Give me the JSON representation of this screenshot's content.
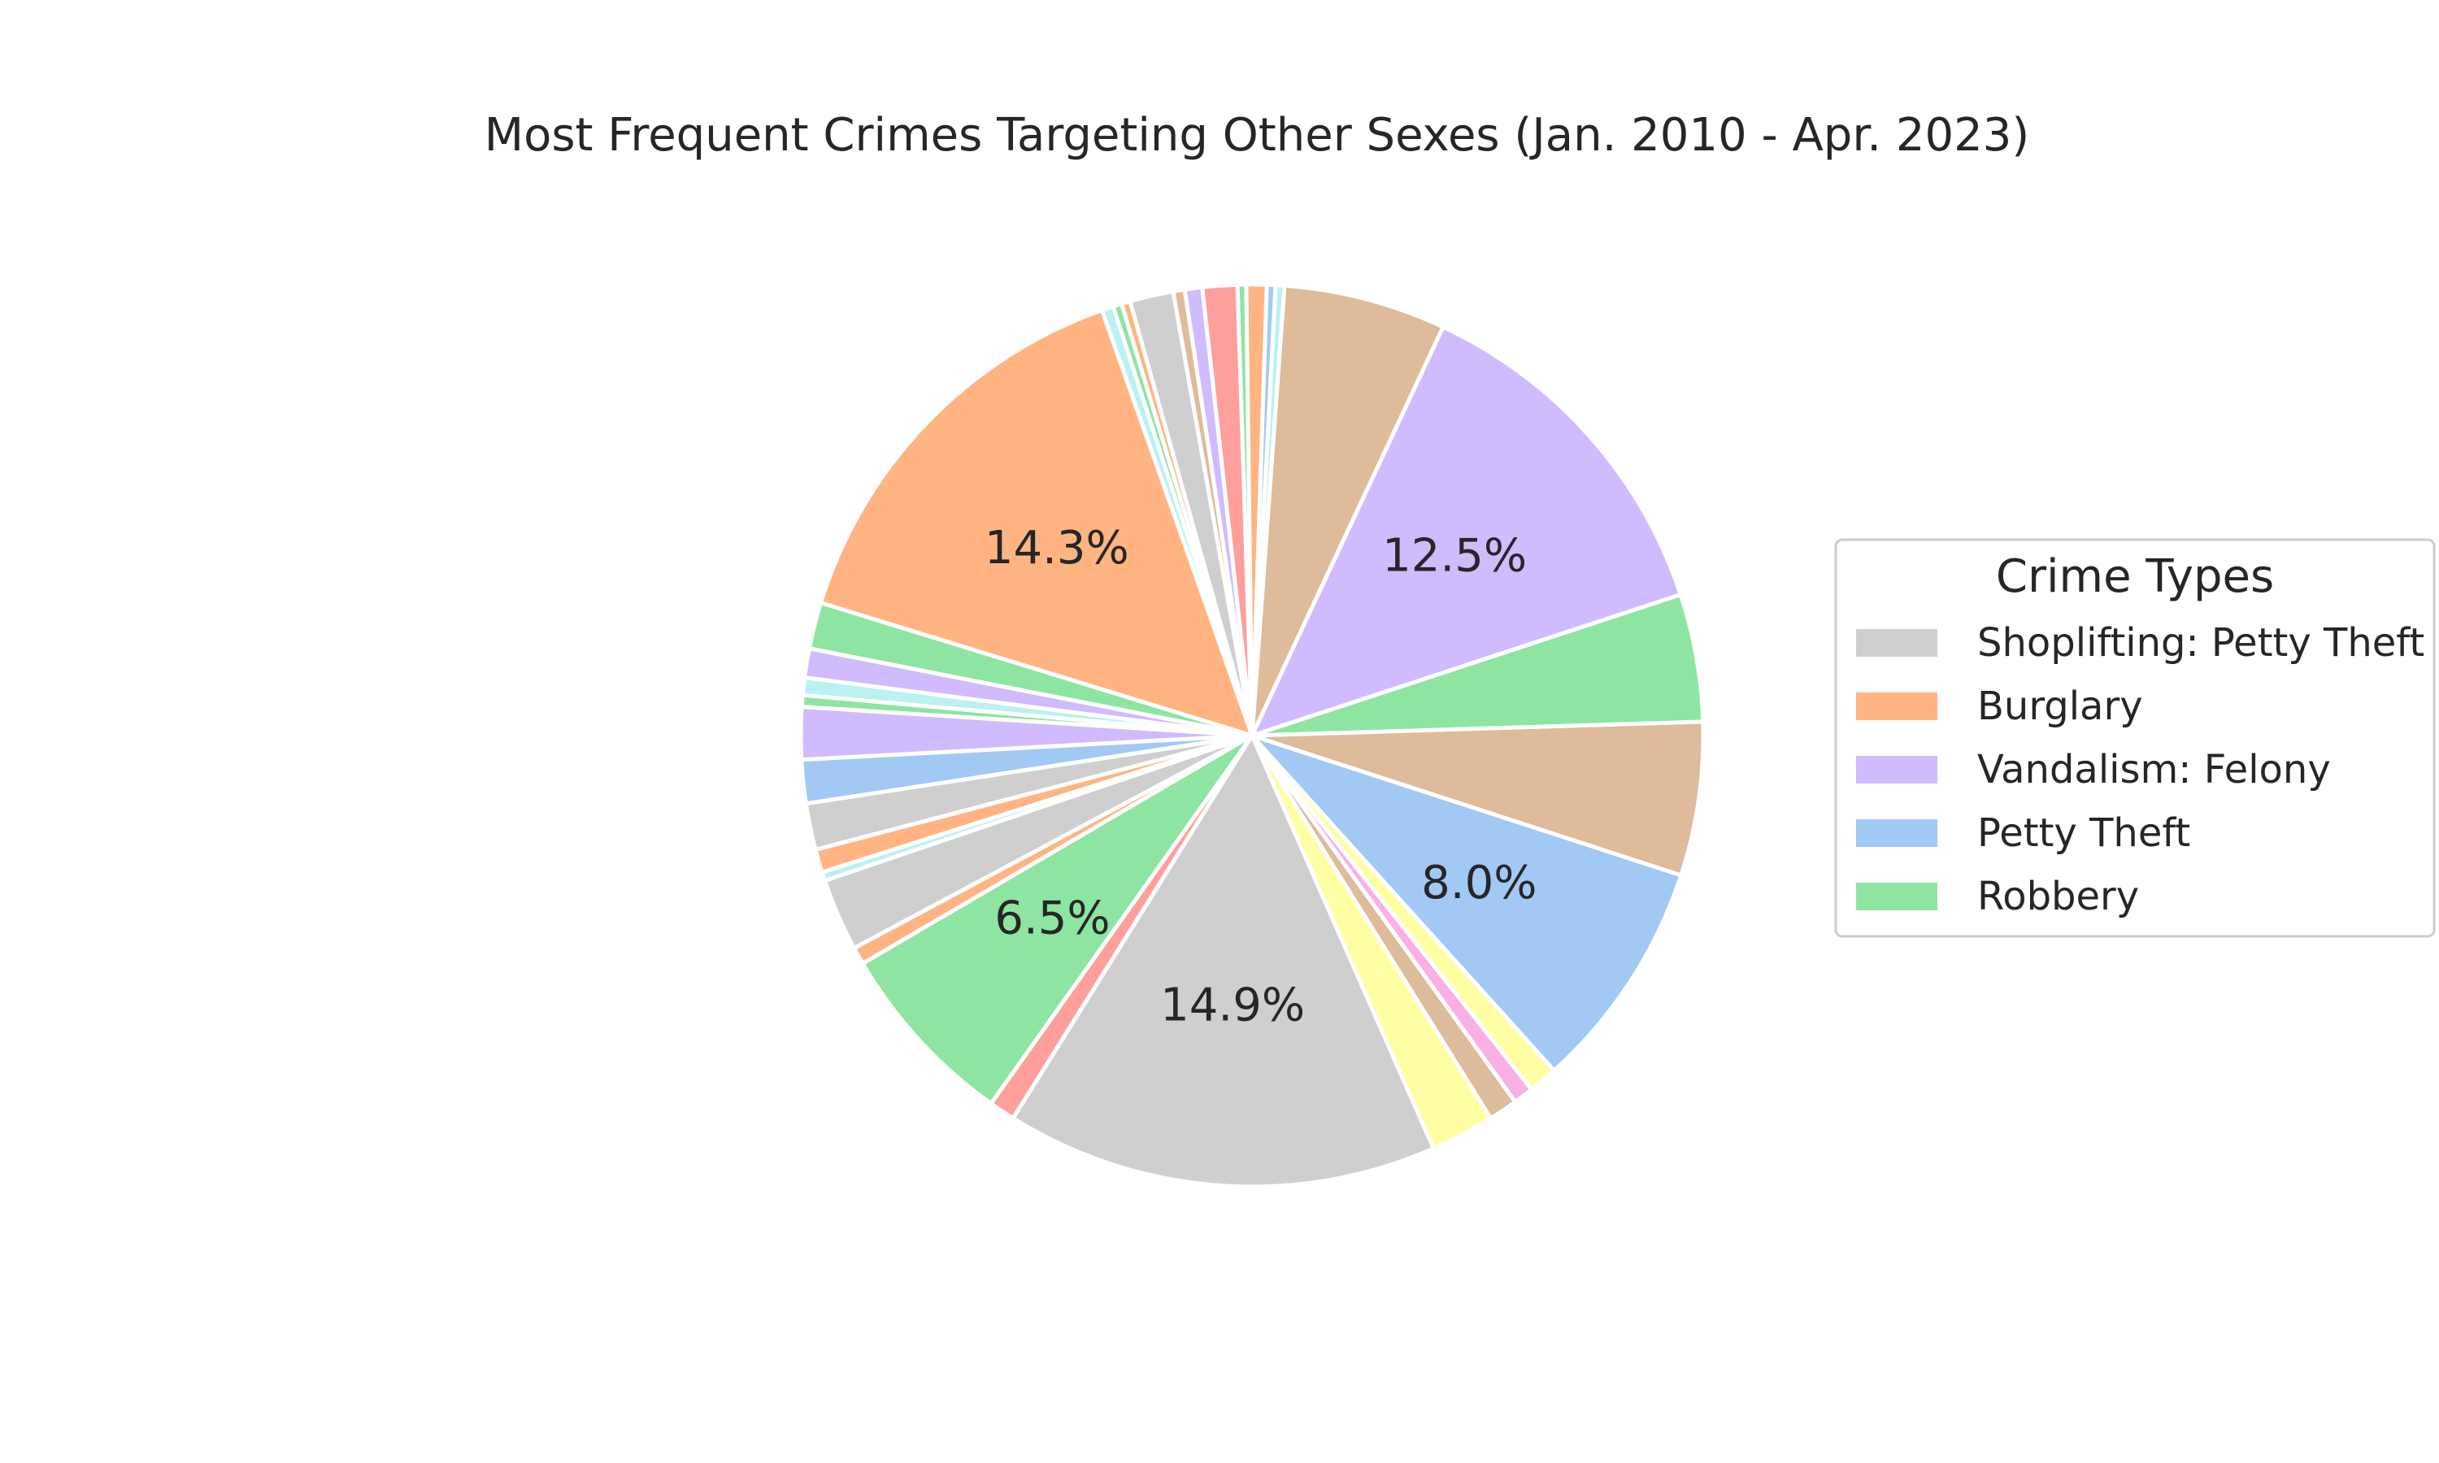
{
  "chart_data": {
    "type": "pie",
    "title": "Most Frequent Crimes Targeting Other Sexes (Jan. 2010 - Apr. 2023)",
    "start_angle_deg": 87,
    "direction": "counterclockwise",
    "label_min_pct": 6,
    "legend": {
      "title": "Crime Types",
      "placement": "center-right",
      "entries": [
        "Shoplifting: Petty Theft",
        "Burglary",
        "Vandalism: Felony",
        "Petty Theft",
        "Robbery"
      ]
    },
    "palette": [
      "#cfcfcf",
      "#ffb482",
      "#d0bbff",
      "#a1c9f4",
      "#8de5a1",
      "#ff9f9b",
      "#debb9b",
      "#fab0e4",
      "#fffea3",
      "#b9f2f0"
    ],
    "slices": [
      {
        "value": 0.3,
        "color": "#a1c9f4"
      },
      {
        "value": 0.7,
        "color": "#ffb482"
      },
      {
        "value": 0.3,
        "color": "#8de5a1"
      },
      {
        "value": 1.2,
        "color": "#ff9f9b"
      },
      {
        "value": 0.6,
        "color": "#d0bbff"
      },
      {
        "value": 0.4,
        "color": "#debb9b"
      },
      {
        "value": 1.5,
        "color": "#cfcfcf"
      },
      {
        "value": 0.3,
        "color": "#ffb482"
      },
      {
        "value": 0.3,
        "color": "#8de5a1"
      },
      {
        "value": 0.4,
        "color": "#b9f2f0"
      },
      {
        "value": 14.3,
        "color": "#ffb482",
        "label": "14.3%"
      },
      {
        "value": 1.6,
        "color": "#8de5a1"
      },
      {
        "value": 1.0,
        "color": "#d0bbff"
      },
      {
        "value": 0.6,
        "color": "#b9f2f0"
      },
      {
        "value": 0.4,
        "color": "#8de5a1"
      },
      {
        "value": 1.8,
        "color": "#d0bbff"
      },
      {
        "value": 1.5,
        "color": "#a1c9f4"
      },
      {
        "value": 1.6,
        "color": "#cfcfcf"
      },
      {
        "value": 0.8,
        "color": "#ffb482"
      },
      {
        "value": 0.3,
        "color": "#b9f2f0"
      },
      {
        "value": 2.5,
        "color": "#cfcfcf"
      },
      {
        "value": 0.6,
        "color": "#ffb482"
      },
      {
        "value": 6.5,
        "color": "#8de5a1",
        "label": "6.5%"
      },
      {
        "value": 0.9,
        "color": "#ff9f9b"
      },
      {
        "value": 14.9,
        "color": "#cfcfcf",
        "label": "14.9%"
      },
      {
        "value": 2.2,
        "color": "#fffea3"
      },
      {
        "value": 1.0,
        "color": "#debb9b"
      },
      {
        "value": 0.7,
        "color": "#fab0e4"
      },
      {
        "value": 1.0,
        "color": "#fffea3"
      },
      {
        "value": 8.0,
        "color": "#a1c9f4",
        "label": "8.0%"
      },
      {
        "value": 5.3,
        "color": "#debb9b"
      },
      {
        "value": 4.4,
        "color": "#8de5a1"
      },
      {
        "value": 12.5,
        "color": "#d0bbff",
        "label": "12.5%"
      },
      {
        "value": 5.6,
        "color": "#debb9b"
      },
      {
        "value": 0.3,
        "color": "#b9f2f0"
      }
    ]
  }
}
